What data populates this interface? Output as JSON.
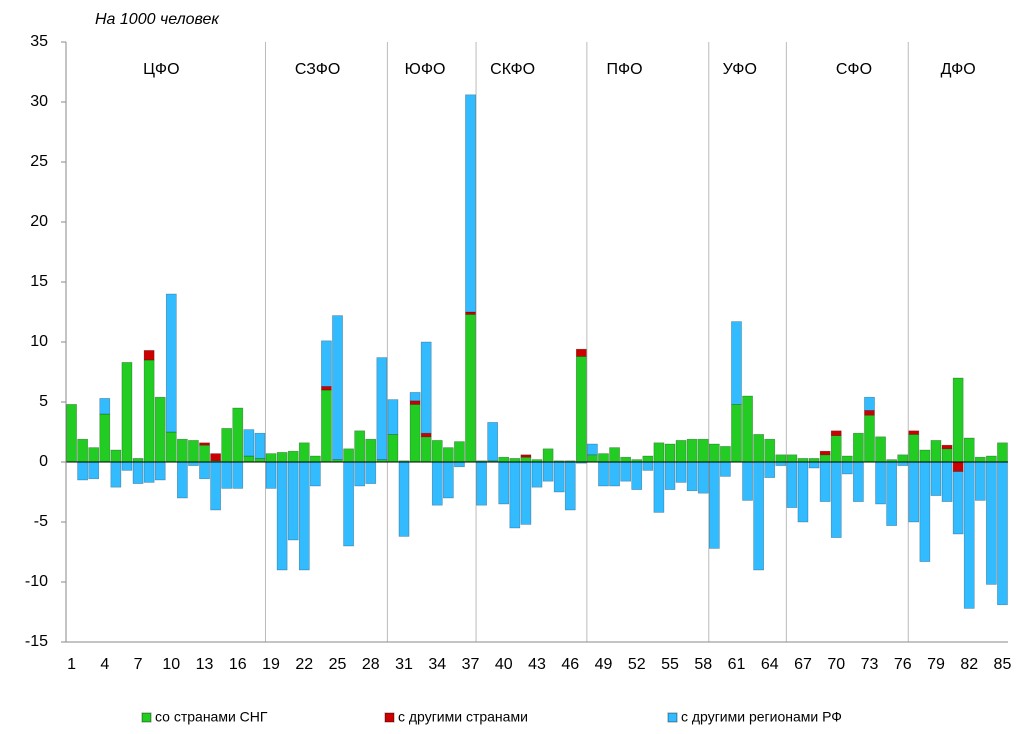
{
  "chart_data": {
    "type": "bar",
    "stacked": true,
    "subtitle": "На 1000 человек",
    "annotations": [
      "ЦФО",
      "СЗФО",
      "ЮФО",
      "СКФО",
      "ПФО",
      "УФО",
      "СФО",
      "ДФО"
    ],
    "categories": [
      "1",
      null,
      null,
      "4",
      null,
      null,
      "7",
      null,
      null,
      "10",
      null,
      null,
      "13",
      null,
      null,
      "16",
      null,
      null,
      "19",
      null,
      null,
      "22",
      null,
      null,
      "25",
      null,
      null,
      "28",
      null,
      null,
      "31",
      null,
      null,
      "34",
      null,
      null,
      "37",
      null,
      null,
      "40",
      null,
      null,
      "43",
      null,
      null,
      "46",
      null,
      null,
      "49",
      null,
      null,
      "52",
      null,
      null,
      "55",
      null,
      null,
      "58",
      null,
      null,
      "61",
      null,
      null,
      "64",
      null,
      null,
      "67",
      null,
      null,
      "70",
      null,
      null,
      "73",
      null,
      null,
      "76",
      null,
      null,
      "79",
      null,
      null,
      "82",
      null,
      null,
      "85"
    ],
    "series": [
      {
        "name": "со странами СНГ",
        "color": "#22cc22",
        "values": [
          4.8,
          1.9,
          1.2,
          4.0,
          1.0,
          8.3,
          0.3,
          8.5,
          5.4,
          2.5,
          1.9,
          1.8,
          1.4,
          0.1,
          2.8,
          4.5,
          0.5,
          0.3,
          0.7,
          0.8,
          0.9,
          1.6,
          0.5,
          6.0,
          0.2,
          1.1,
          2.6,
          1.9,
          0.2,
          2.3,
          0.1,
          4.8,
          2.1,
          1.8,
          1.2,
          1.7,
          12.3,
          0.1,
          0.1,
          0.4,
          0.3,
          0.4,
          0.2,
          1.1,
          0.1,
          0.1,
          8.8,
          0.6,
          0.7,
          1.2,
          0.4,
          0.2,
          0.5,
          1.6,
          1.5,
          1.8,
          1.9,
          1.9,
          1.5,
          1.3,
          4.8,
          5.5,
          2.3,
          1.9,
          0.6,
          0.6,
          0.3,
          0.3,
          0.6,
          2.2,
          0.5,
          2.4,
          3.9,
          2.1,
          0.2,
          0.6,
          2.3,
          1.0,
          1.8,
          1.1,
          7.0,
          2.0,
          0.4,
          0.5,
          1.6
        ]
      },
      {
        "name": "с другими странами",
        "color": "#cc0000",
        "values": [
          0,
          0,
          0,
          0,
          0,
          0,
          0,
          0.8,
          0,
          0,
          0,
          0,
          0.2,
          0.6,
          0,
          0,
          0,
          0,
          0,
          0,
          0,
          0,
          0,
          0.3,
          0,
          0,
          0,
          0,
          0,
          0,
          0,
          0.3,
          0.3,
          0,
          0,
          0,
          0.2,
          0,
          0,
          0,
          0,
          0.2,
          0,
          0,
          0,
          0,
          0.6,
          0,
          0,
          0,
          0,
          0,
          0,
          0,
          0,
          0,
          0,
          0,
          0,
          0,
          0,
          0,
          0,
          0,
          0,
          0,
          0,
          0,
          0.3,
          0.4,
          0,
          0,
          0.4,
          0,
          0,
          0,
          0.3,
          0,
          0,
          0.3,
          -0.8,
          0,
          0,
          0,
          0
        ]
      },
      {
        "name": "с другими регионами РФ",
        "color": "#33bbff",
        "values": [
          0,
          -1.5,
          -1.4,
          1.3,
          -2.1,
          -0.7,
          -1.8,
          -1.7,
          -1.5,
          11.5,
          -3,
          -0.3,
          -1.4,
          -4,
          -2.2,
          -2.2,
          2.2,
          2.1,
          -2.2,
          -9,
          -6.5,
          -9,
          -2,
          3.8,
          12,
          -7,
          -2,
          -1.8,
          8.5,
          2.9,
          -6.2,
          0.7,
          7.6,
          -3.6,
          -3,
          -0.4,
          18.1,
          -3.6,
          3.2,
          -3.5,
          -5.5,
          -5.2,
          -2.1,
          -1.6,
          -2.5,
          -4,
          -0.1,
          0.9,
          -2,
          -2,
          -1.6,
          -2.3,
          -0.7,
          -4.2,
          -2.3,
          -1.7,
          -2.4,
          -2.6,
          -7.2,
          -1.2,
          6.9,
          -3.2,
          -9,
          -1.3,
          -0.3,
          -3.8,
          -5,
          -0.5,
          -3.3,
          -6.3,
          -1,
          -3.3,
          1.1,
          -3.5,
          -5.3,
          -0.3,
          -5,
          -8.3,
          -2.8,
          -3.3,
          -5.2,
          -12.2,
          -3.2,
          -10.2,
          -11.9
        ]
      }
    ],
    "ylim": [
      -15,
      35
    ],
    "yticks": [
      -15,
      -10,
      -5,
      0,
      5,
      10,
      15,
      20,
      25,
      30,
      35
    ],
    "grid": false,
    "legend": "bottom"
  }
}
